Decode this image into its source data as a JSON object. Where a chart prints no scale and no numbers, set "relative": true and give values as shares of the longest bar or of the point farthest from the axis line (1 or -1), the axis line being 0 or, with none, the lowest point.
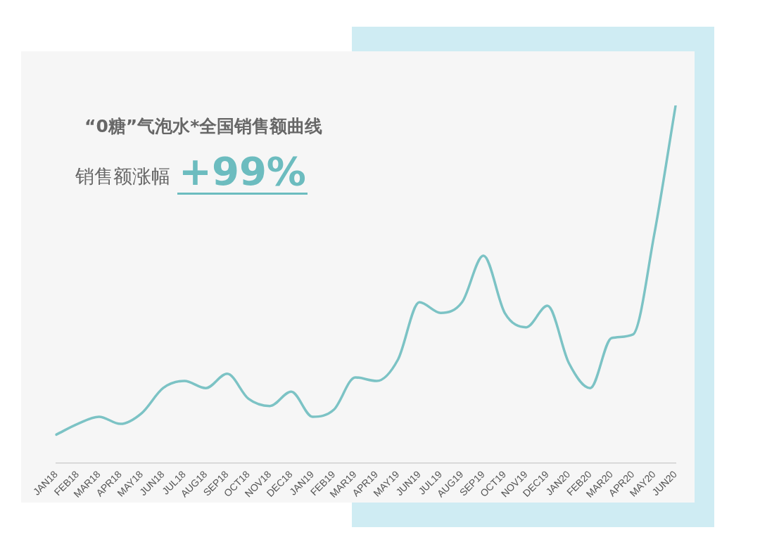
{
  "chart_data": {
    "type": "line",
    "title": "“0糖”气泡水*全国销售额曲线",
    "subtitle": "销售额涨幅",
    "annotations": [
      "+99%"
    ],
    "relative": true,
    "grid": false,
    "legend": false,
    "marker": "none",
    "categories": [
      "JAN18",
      "FEB18",
      "MAR18",
      "APR18",
      "MAY18",
      "JUN18",
      "JUL18",
      "AUG18",
      "SEP18",
      "OCT18",
      "NOV18",
      "DEC18",
      "JAN19",
      "FEB19",
      "MAR19",
      "APR19",
      "MAY19",
      "JUN19",
      "JUL19",
      "AUG19",
      "SEP19",
      "OCT19",
      "NOV19",
      "DEC19",
      "JAN20",
      "FEB20",
      "MAR20",
      "APR20",
      "MAY20",
      "JUN20"
    ],
    "series": [
      {
        "color": "#7cc3c5",
        "values": [
          0.08,
          0.11,
          0.13,
          0.11,
          0.14,
          0.21,
          0.23,
          0.21,
          0.25,
          0.18,
          0.16,
          0.2,
          0.13,
          0.15,
          0.24,
          0.23,
          0.29,
          0.45,
          0.42,
          0.45,
          0.58,
          0.42,
          0.38,
          0.44,
          0.28,
          0.21,
          0.35,
          0.36,
          0.64,
          1
        ]
      }
    ]
  }
}
